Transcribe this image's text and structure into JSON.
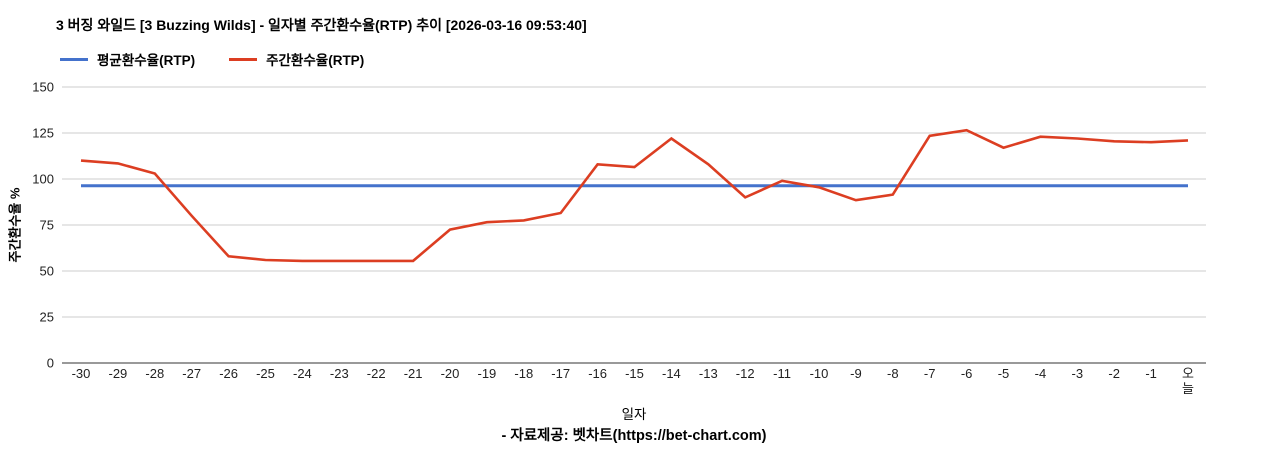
{
  "title": "3 버징 와일드 [3 Buzzing Wilds] - 일자별 주간환수율(RTP) 추이 [2026-03-16 09:53:40]",
  "legend": {
    "average_label": "평균환수율(RTP)",
    "weekly_label": "주간환수율(RTP)"
  },
  "footer": {
    "credit": "- 자료제공: 벳차트(https://bet-chart.com)"
  },
  "colors": {
    "average_line": "#4472cc",
    "weekly_line": "#dc3e22",
    "gridline": "#cccccc",
    "axis_baseline": "#333333",
    "tick_text": "#222222"
  },
  "chart_data": {
    "type": "line",
    "title": "3 버징 와일드 [3 Buzzing Wilds] - 일자별 주간환수율(RTP) 추이 [2026-03-16 09:53:40]",
    "xlabel": "일자",
    "ylabel": "주간환수율 %",
    "grid": true,
    "legend_position": "top-left",
    "ylim": [
      0,
      150
    ],
    "yticks": [
      0,
      25,
      50,
      75,
      100,
      125,
      150
    ],
    "x": [
      "-30",
      "-29",
      "-28",
      "-27",
      "-26",
      "-25",
      "-24",
      "-23",
      "-22",
      "-21",
      "-20",
      "-19",
      "-18",
      "-17",
      "-16",
      "-15",
      "-14",
      "-13",
      "-12",
      "-11",
      "-10",
      "-9",
      "-8",
      "-7",
      "-6",
      "-5",
      "-4",
      "-3",
      "-2",
      "-1",
      "오늘"
    ],
    "series": [
      {
        "name": "평균환수율(RTP)",
        "color": "#4472cc",
        "values": [
          96.3,
          96.3,
          96.3,
          96.3,
          96.3,
          96.3,
          96.3,
          96.3,
          96.3,
          96.3,
          96.3,
          96.3,
          96.3,
          96.3,
          96.3,
          96.3,
          96.3,
          96.3,
          96.3,
          96.3,
          96.3,
          96.3,
          96.3,
          96.3,
          96.3,
          96.3,
          96.3,
          96.3,
          96.3,
          96.3,
          96.3
        ]
      },
      {
        "name": "주간환수율(RTP)",
        "color": "#dc3e22",
        "values": [
          110,
          108.5,
          103,
          80,
          58,
          56,
          55.5,
          55.5,
          55.5,
          55.5,
          72.5,
          76.5,
          77.5,
          81.5,
          108,
          106.5,
          122,
          108,
          90,
          99,
          95.5,
          88.5,
          91.5,
          123.5,
          126.5,
          117,
          123,
          122,
          120.5,
          120,
          121
        ]
      }
    ]
  }
}
